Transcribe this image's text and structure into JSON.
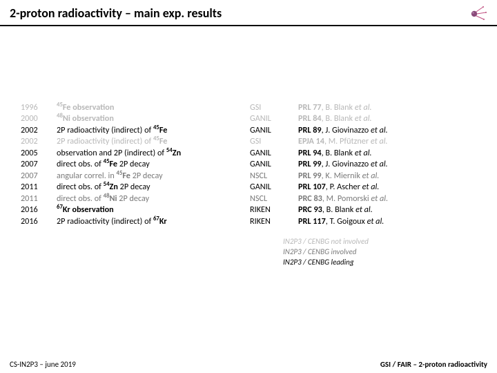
{
  "title": "2-proton radioactivity – main exp. results",
  "rows": [
    {
      "year": "1996",
      "desc_parts": [
        [
          "sup",
          "45"
        ],
        [
          "bold",
          "Fe observation"
        ]
      ],
      "facility": "GSI",
      "ref_parts": [
        [
          "bold",
          "PRL 77"
        ],
        [
          "plain",
          ", B. Blank "
        ],
        [
          "italic",
          "et al."
        ]
      ],
      "tone": 2
    },
    {
      "year": "2000",
      "desc_parts": [
        [
          "sup",
          "48"
        ],
        [
          "bold",
          "Ni observation"
        ]
      ],
      "facility": "GANIL",
      "ref_parts": [
        [
          "bold",
          "PRL 84"
        ],
        [
          "plain",
          ", B. Blank "
        ],
        [
          "italic",
          "et al."
        ]
      ],
      "tone": 2
    },
    {
      "year": "2002",
      "desc_parts": [
        [
          "plain",
          "2P radioactivity (indirect) of "
        ],
        [
          "sup",
          "45"
        ],
        [
          "bold",
          "Fe"
        ]
      ],
      "facility": "GANIL",
      "ref_parts": [
        [
          "bold",
          "PRL 89"
        ],
        [
          "plain",
          ", J. Giovinazzo "
        ],
        [
          "italic",
          "et al."
        ]
      ],
      "tone": 0
    },
    {
      "year": "2002",
      "desc_parts": [
        [
          "plain",
          "2P radioactivity (indirect) of "
        ],
        [
          "sup",
          "45"
        ],
        [
          "bold",
          "Fe"
        ]
      ],
      "facility": "GSI",
      "ref_parts": [
        [
          "bold",
          "EPJA 14"
        ],
        [
          "plain",
          ", M. Pfützner "
        ],
        [
          "italic",
          "et al."
        ]
      ],
      "tone": 2
    },
    {
      "year": "2005",
      "desc_parts": [
        [
          "plain",
          "observation and 2P (indirect) of "
        ],
        [
          "sup",
          "54"
        ],
        [
          "bold",
          "Zn"
        ]
      ],
      "facility": "GANIL",
      "ref_parts": [
        [
          "bold",
          "PRL 94"
        ],
        [
          "plain",
          ", B. Blank "
        ],
        [
          "italic",
          "et al."
        ]
      ],
      "tone": 0
    },
    {
      "year": "2007",
      "desc_parts": [
        [
          "plain",
          "direct obs. of "
        ],
        [
          "sup",
          "45"
        ],
        [
          "bold",
          "Fe"
        ],
        [
          "plain",
          " 2P decay"
        ]
      ],
      "facility": "GANIL",
      "ref_parts": [
        [
          "bold",
          "PRL 99"
        ],
        [
          "plain",
          ", J. Giovinazzo "
        ],
        [
          "italic",
          "et al."
        ]
      ],
      "tone": 0
    },
    {
      "year": "2007",
      "desc_parts": [
        [
          "plain",
          "angular correl. in "
        ],
        [
          "sup",
          "45"
        ],
        [
          "bold",
          "Fe"
        ],
        [
          "plain",
          " 2P decay"
        ]
      ],
      "facility": "NSCL",
      "ref_parts": [
        [
          "bold",
          "PRL 99"
        ],
        [
          "plain",
          ", K. Miernik "
        ],
        [
          "italic",
          "et al."
        ]
      ],
      "tone": 1
    },
    {
      "year": "2011",
      "desc_parts": [
        [
          "plain",
          "direct obs. of "
        ],
        [
          "sup",
          "54"
        ],
        [
          "bold",
          "Zn"
        ],
        [
          "plain",
          " 2P decay"
        ]
      ],
      "facility": "GANIL",
      "ref_parts": [
        [
          "bold",
          "PRL 107"
        ],
        [
          "plain",
          ", P. Ascher "
        ],
        [
          "italic",
          "et al."
        ]
      ],
      "tone": 0
    },
    {
      "year": "2011",
      "desc_parts": [
        [
          "plain",
          "direct obs. of "
        ],
        [
          "sup",
          "48"
        ],
        [
          "bold",
          "Ni"
        ],
        [
          "plain",
          " 2P decay"
        ]
      ],
      "facility": "NSCL",
      "ref_parts": [
        [
          "bold",
          "PRC 83"
        ],
        [
          "plain",
          ", M. Pomorski "
        ],
        [
          "italic",
          "et al."
        ]
      ],
      "tone": 1
    },
    {
      "year": "2016",
      "desc_parts": [
        [
          "sup",
          "67"
        ],
        [
          "bold",
          "Kr observation"
        ]
      ],
      "facility": "RIKEN",
      "ref_parts": [
        [
          "bold",
          "PRC 93"
        ],
        [
          "plain",
          ", B. Blank "
        ],
        [
          "italic",
          "et al."
        ]
      ],
      "tone": 0
    },
    {
      "year": "2016",
      "desc_parts": [
        [
          "plain",
          "2P radioactivity (indirect) of "
        ],
        [
          "sup",
          "67"
        ],
        [
          "bold",
          "Kr"
        ]
      ],
      "facility": "RIKEN",
      "ref_parts": [
        [
          "bold",
          "PRL 117"
        ],
        [
          "plain",
          ", T. Goigoux "
        ],
        [
          "italic",
          "et al."
        ]
      ],
      "tone": 0
    }
  ],
  "legend": [
    {
      "text": "IN2P3 / CENBG not involved",
      "tone": 0
    },
    {
      "text": "IN2P3 / CENBG involved",
      "tone": 1
    },
    {
      "text": "IN2P3 / CENBG leading",
      "tone": 2
    }
  ],
  "footer_left": "CS-IN2P3 – june 2019",
  "footer_right": "GSI / FAIR – 2-proton radioactivity",
  "colors": {
    "tone0": "#000000",
    "tone1": "#7a7a7a",
    "tone2": "#b8b8b8"
  }
}
